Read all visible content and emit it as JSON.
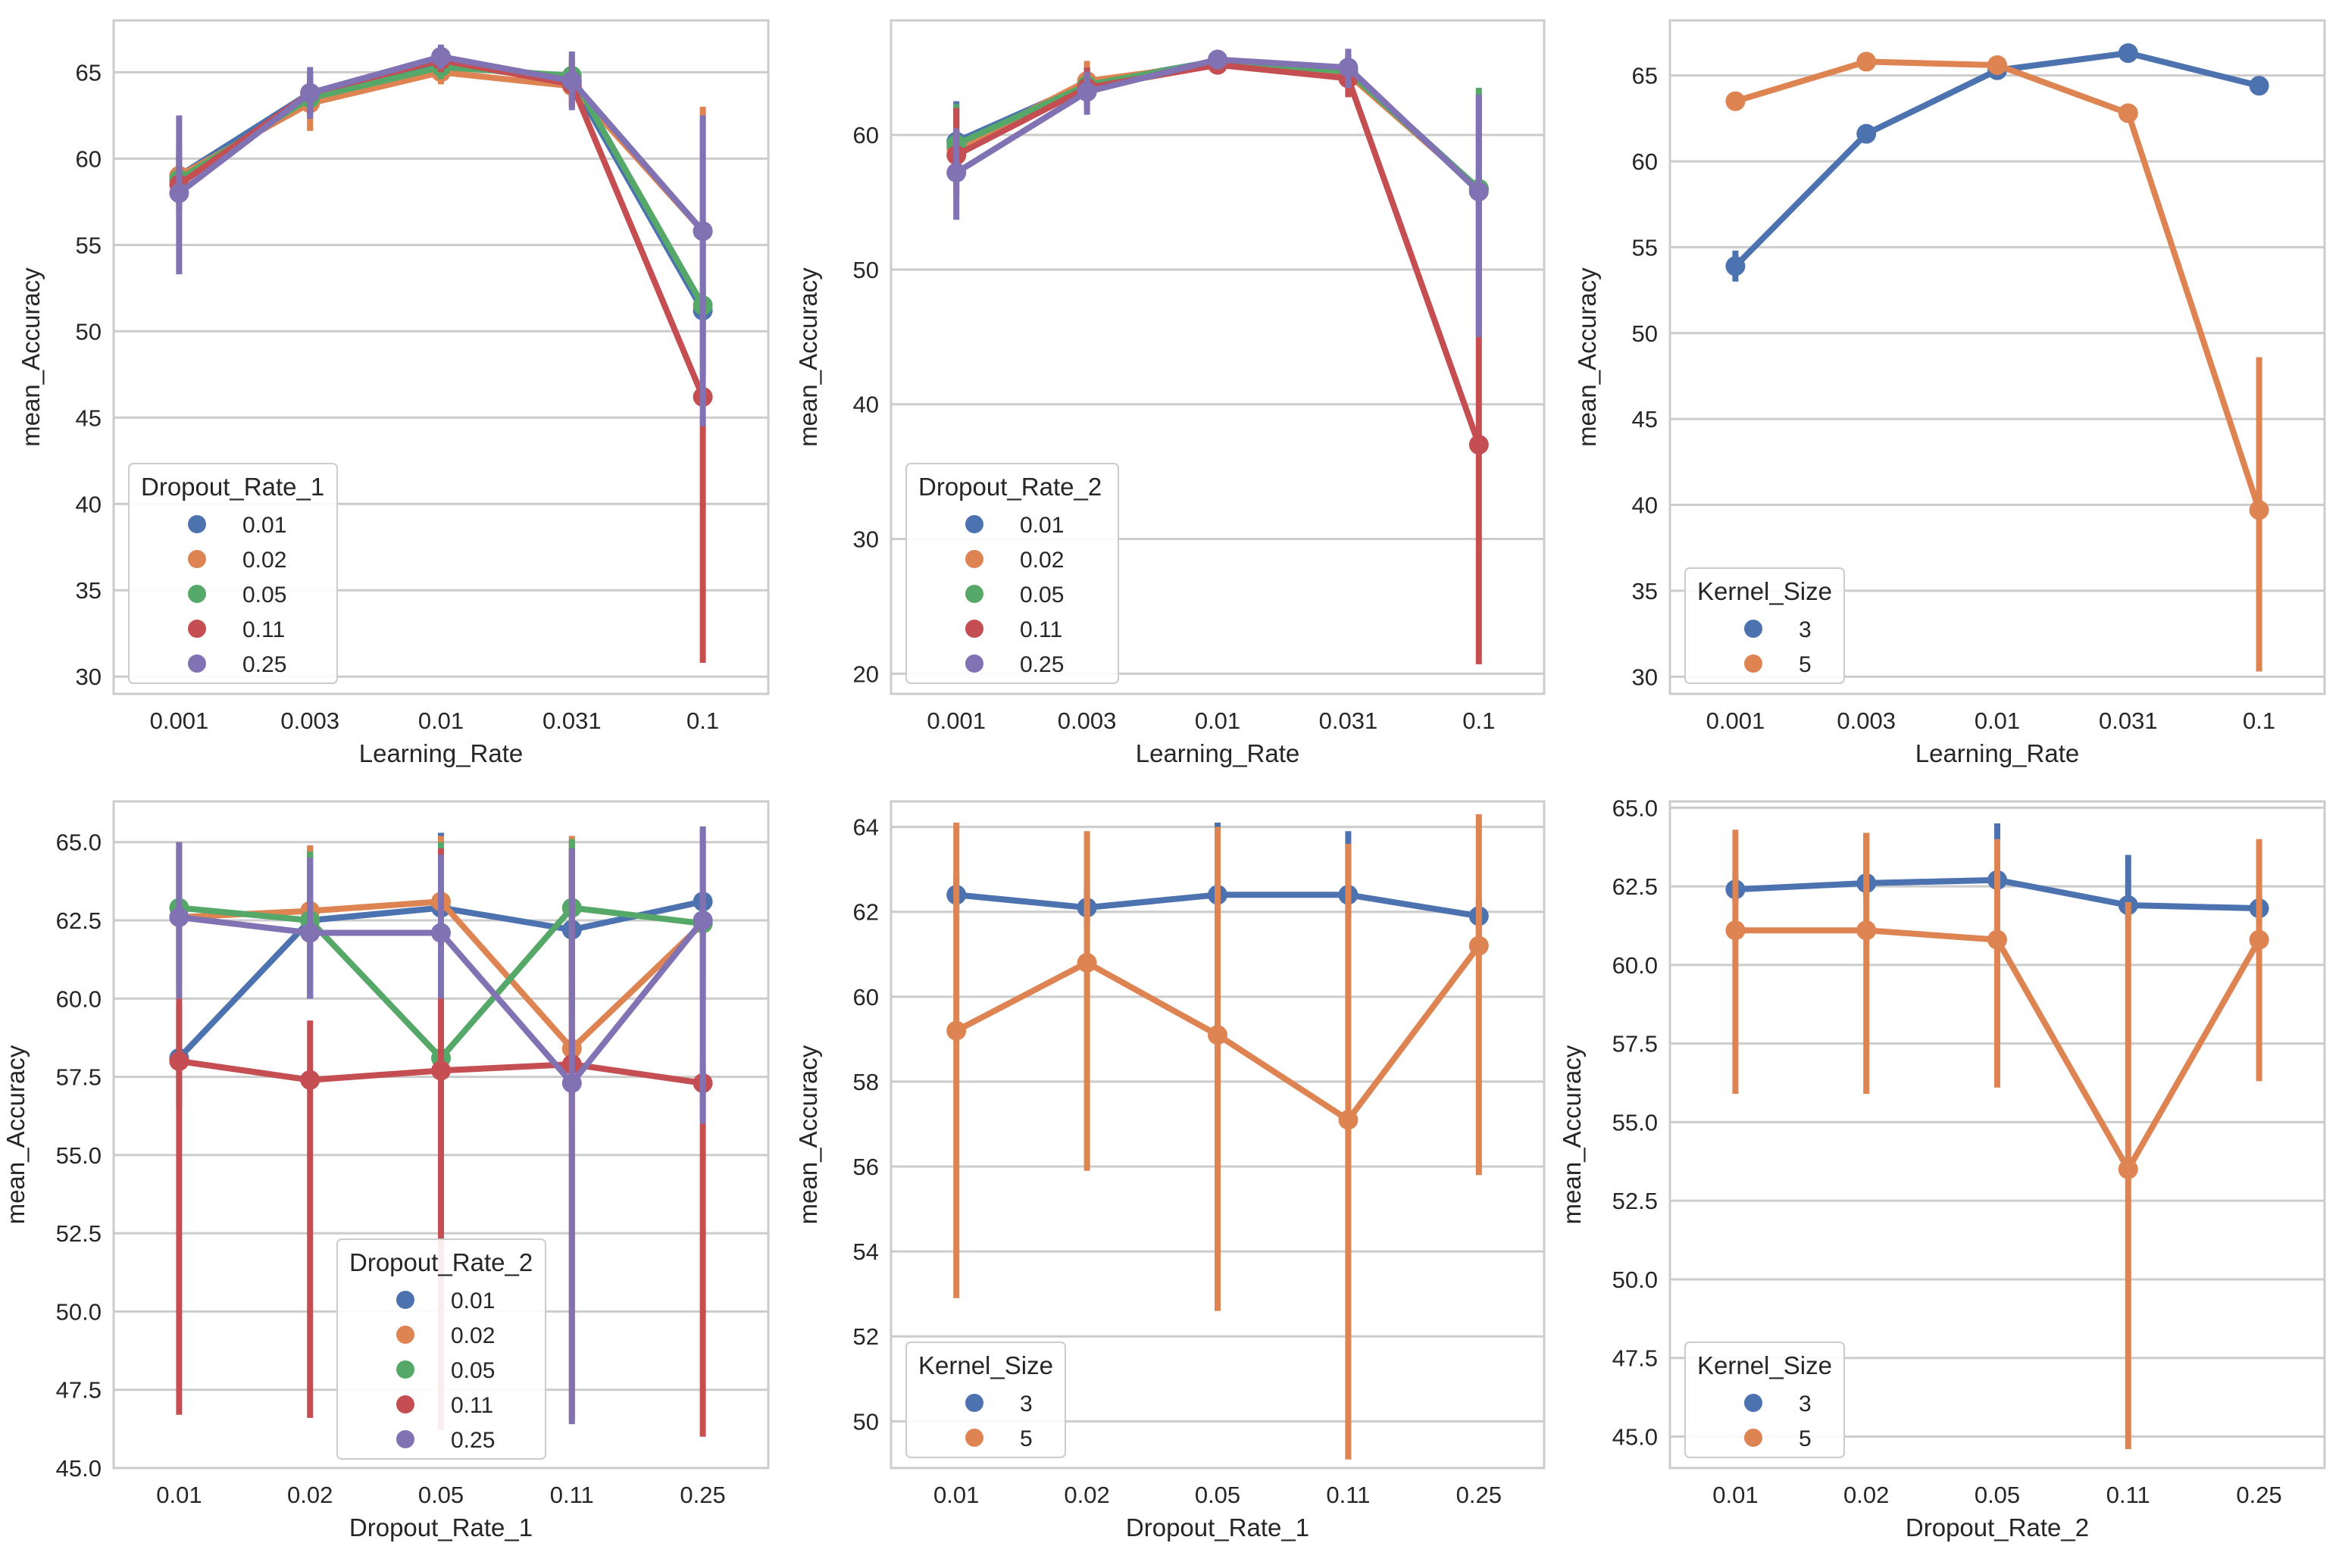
{
  "figure": {
    "background": "#ffffff"
  },
  "chart_data": [
    {
      "type": "line",
      "xlabel": "Learning_Rate",
      "ylabel": "mean_Accuracy",
      "categories": [
        "0.001",
        "0.003",
        "0.01",
        "0.031",
        "0.1"
      ],
      "ylim": [
        29,
        68
      ],
      "yticks": [
        30,
        35,
        40,
        45,
        50,
        55,
        60,
        65
      ],
      "ytick_labels": [
        "30",
        "35",
        "40",
        "45",
        "50",
        "55",
        "60",
        "65"
      ],
      "legend": {
        "title": "Dropout_Rate_1",
        "position": "lower-left"
      },
      "series": [
        {
          "name": "0.01",
          "color": "#4c72b0",
          "values": [
            59.0,
            63.8,
            65.5,
            64.5,
            51.2
          ],
          "ci": [
            [
              57.2,
              60.8
            ],
            [
              62.6,
              65.0
            ],
            [
              64.8,
              66.2
            ],
            [
              63.4,
              65.6
            ],
            [
              47.5,
              55.0
            ]
          ]
        },
        {
          "name": "0.02",
          "color": "#dd8452",
          "values": [
            59.0,
            63.2,
            65.0,
            64.2,
            55.8
          ],
          "ci": [
            [
              57.5,
              60.5
            ],
            [
              61.6,
              64.6
            ],
            [
              64.3,
              65.7
            ],
            [
              63.0,
              65.4
            ],
            [
              48.5,
              63.0
            ]
          ]
        },
        {
          "name": "0.05",
          "color": "#55a868",
          "values": [
            58.8,
            63.5,
            65.3,
            64.8,
            51.5
          ],
          "ci": [
            [
              57.3,
              60.3
            ],
            [
              62.3,
              64.7
            ],
            [
              64.6,
              66.0
            ],
            [
              63.6,
              66.0
            ],
            [
              47.5,
              55.5
            ]
          ]
        },
        {
          "name": "0.11",
          "color": "#c44e52",
          "values": [
            58.5,
            63.8,
            65.7,
            64.3,
            46.2
          ],
          "ci": [
            [
              56.9,
              60.1
            ],
            [
              62.6,
              65.0
            ],
            [
              65.0,
              66.4
            ],
            [
              63.0,
              65.6
            ],
            [
              30.8,
              45.0
            ]
          ]
        },
        {
          "name": "0.25",
          "color": "#8172b3",
          "values": [
            58.0,
            63.8,
            65.9,
            64.5,
            55.8
          ],
          "ci": [
            [
              53.3,
              62.5
            ],
            [
              62.3,
              65.3
            ],
            [
              65.2,
              66.6
            ],
            [
              62.8,
              66.2
            ],
            [
              44.5,
              62.5
            ]
          ]
        }
      ]
    },
    {
      "type": "line",
      "xlabel": "Learning_Rate",
      "ylabel": "mean_Accuracy",
      "categories": [
        "0.001",
        "0.003",
        "0.01",
        "0.031",
        "0.1"
      ],
      "ylim": [
        18.5,
        68.5
      ],
      "yticks": [
        20,
        30,
        40,
        50,
        60
      ],
      "ytick_labels": [
        "20",
        "30",
        "40",
        "50",
        "60"
      ],
      "legend": {
        "title": "Dropout_Rate_2",
        "position": "lower-left"
      },
      "series": [
        {
          "name": "0.01",
          "color": "#4c72b0",
          "values": [
            59.5,
            63.8,
            65.5,
            64.8,
            56.0
          ],
          "ci": [
            [
              56.5,
              62.5
            ],
            [
              62.5,
              65.0
            ],
            [
              65.0,
              66.0
            ],
            [
              63.5,
              66.0
            ],
            [
              45.0,
              63.0
            ]
          ]
        },
        {
          "name": "0.02",
          "color": "#dd8452",
          "values": [
            59.0,
            64.0,
            65.3,
            64.5,
            56.0
          ],
          "ci": [
            [
              56.5,
              61.5
            ],
            [
              62.5,
              65.5
            ],
            [
              64.8,
              65.8
            ],
            [
              63.2,
              65.8
            ],
            [
              45.0,
              63.0
            ]
          ]
        },
        {
          "name": "0.05",
          "color": "#55a868",
          "values": [
            59.3,
            63.7,
            65.5,
            64.7,
            56.0
          ],
          "ci": [
            [
              56.8,
              62.3
            ],
            [
              62.3,
              65.0
            ],
            [
              65.0,
              66.0
            ],
            [
              63.4,
              66.0
            ],
            [
              45.0,
              63.5
            ]
          ]
        },
        {
          "name": "0.11",
          "color": "#c44e52",
          "values": [
            58.5,
            63.5,
            65.2,
            64.2,
            37.0
          ],
          "ci": [
            [
              55.5,
              62.0
            ],
            [
              62.0,
              65.0
            ],
            [
              64.6,
              65.8
            ],
            [
              62.8,
              65.5
            ],
            [
              20.7,
              45.0
            ]
          ]
        },
        {
          "name": "0.25",
          "color": "#8172b3",
          "values": [
            57.2,
            63.2,
            65.6,
            65.0,
            55.8
          ],
          "ci": [
            [
              53.7,
              60.5
            ],
            [
              61.5,
              64.7
            ],
            [
              65.0,
              66.2
            ],
            [
              63.5,
              66.4
            ],
            [
              45.0,
              63.0
            ]
          ]
        }
      ]
    },
    {
      "type": "line",
      "xlabel": "Learning_Rate",
      "ylabel": "mean_Accuracy",
      "categories": [
        "0.001",
        "0.003",
        "0.01",
        "0.031",
        "0.1"
      ],
      "ylim": [
        29,
        68.2
      ],
      "yticks": [
        30,
        35,
        40,
        45,
        50,
        55,
        60,
        65
      ],
      "ytick_labels": [
        "30",
        "35",
        "40",
        "45",
        "50",
        "55",
        "60",
        "65"
      ],
      "legend": {
        "title": "Kernel_Size",
        "position": "lower-left"
      },
      "series": [
        {
          "name": "3",
          "color": "#4c72b0",
          "values": [
            53.9,
            61.6,
            65.3,
            66.3,
            64.4
          ],
          "ci": [
            [
              53.0,
              54.8
            ],
            [
              61.1,
              62.1
            ],
            [
              64.8,
              65.8
            ],
            [
              65.9,
              66.7
            ],
            [
              63.9,
              64.9
            ]
          ]
        },
        {
          "name": "5",
          "color": "#dd8452",
          "values": [
            63.5,
            65.8,
            65.6,
            62.8,
            39.7
          ],
          "ci": [
            [
              63.0,
              64.0
            ],
            [
              65.3,
              66.3
            ],
            [
              65.1,
              66.1
            ],
            [
              62.3,
              63.3
            ],
            [
              30.3,
              48.6
            ]
          ]
        }
      ]
    },
    {
      "type": "line",
      "xlabel": "Dropout_Rate_1",
      "ylabel": "mean_Accuracy",
      "categories": [
        "0.01",
        "0.02",
        "0.05",
        "0.11",
        "0.25"
      ],
      "ylim": [
        45,
        66.3
      ],
      "yticks": [
        45,
        47.5,
        50,
        52.5,
        55,
        57.5,
        60,
        62.5,
        65
      ],
      "ytick_labels": [
        "45.0",
        "47.5",
        "50.0",
        "52.5",
        "55.0",
        "57.5",
        "60.0",
        "62.5",
        "65.0"
      ],
      "legend": {
        "title": "Dropout_Rate_2",
        "position": "lower-center"
      },
      "series": [
        {
          "name": "0.01",
          "color": "#4c72b0",
          "values": [
            58.1,
            62.5,
            62.9,
            62.2,
            63.1
          ],
          "ci": [
            [
              56.5,
              59.8
            ],
            [
              60.0,
              64.8
            ],
            [
              60.8,
              65.3
            ],
            [
              59.5,
              65.0
            ],
            [
              60.8,
              65.4
            ]
          ]
        },
        {
          "name": "0.02",
          "color": "#dd8452",
          "values": [
            62.6,
            62.8,
            63.1,
            58.4,
            62.4
          ],
          "ci": [
            [
              60.0,
              64.8
            ],
            [
              60.5,
              64.9
            ],
            [
              60.8,
              65.2
            ],
            [
              56.0,
              65.2
            ],
            [
              60.0,
              64.9
            ]
          ]
        },
        {
          "name": "0.05",
          "color": "#55a868",
          "values": [
            62.9,
            62.5,
            58.1,
            62.9,
            62.4
          ],
          "ci": [
            [
              60.5,
              65.0
            ],
            [
              60.0,
              64.7
            ],
            [
              56.0,
              65.0
            ],
            [
              60.5,
              65.1
            ],
            [
              60.0,
              64.9
            ]
          ]
        },
        {
          "name": "0.11",
          "color": "#c44e52",
          "values": [
            58.0,
            57.4,
            57.7,
            57.9,
            57.3
          ],
          "ci": [
            [
              46.7,
              60.0
            ],
            [
              46.6,
              59.3
            ],
            [
              46.2,
              64.8
            ],
            [
              46.5,
              64.8
            ],
            [
              46.0,
              58.0
            ]
          ]
        },
        {
          "name": "0.25",
          "color": "#8172b3",
          "values": [
            62.6,
            62.1,
            62.1,
            57.3,
            62.5
          ],
          "ci": [
            [
              60.0,
              65.0
            ],
            [
              60.0,
              64.5
            ],
            [
              60.0,
              64.6
            ],
            [
              46.4,
              64.8
            ],
            [
              56.0,
              65.5
            ]
          ]
        }
      ]
    },
    {
      "type": "line",
      "xlabel": "Dropout_Rate_1",
      "ylabel": "mean_Accuracy",
      "categories": [
        "0.01",
        "0.02",
        "0.05",
        "0.11",
        "0.25"
      ],
      "ylim": [
        48.9,
        64.6
      ],
      "yticks": [
        50,
        52,
        54,
        56,
        58,
        60,
        62,
        64
      ],
      "ytick_labels": [
        "50",
        "52",
        "54",
        "56",
        "58",
        "60",
        "62",
        "64"
      ],
      "legend": {
        "title": "Kernel_Size",
        "position": "lower-left"
      },
      "series": [
        {
          "name": "3",
          "color": "#4c72b0",
          "values": [
            62.4,
            62.1,
            62.4,
            62.4,
            61.9
          ],
          "ci": [
            [
              62.0,
              62.9
            ],
            [
              61.7,
              62.6
            ],
            [
              61.9,
              64.1
            ],
            [
              61.9,
              63.9
            ],
            [
              61.4,
              62.3
            ]
          ]
        },
        {
          "name": "5",
          "color": "#dd8452",
          "values": [
            59.2,
            60.8,
            59.1,
            57.1,
            61.2
          ],
          "ci": [
            [
              52.9,
              64.1
            ],
            [
              55.9,
              63.9
            ],
            [
              52.6,
              64.0
            ],
            [
              49.1,
              63.6
            ],
            [
              55.8,
              64.3
            ]
          ]
        }
      ]
    },
    {
      "type": "line",
      "xlabel": "Dropout_Rate_2",
      "ylabel": "mean_Accuracy",
      "categories": [
        "0.01",
        "0.02",
        "0.05",
        "0.11",
        "0.25"
      ],
      "ylim": [
        44,
        65.2
      ],
      "yticks": [
        45,
        47.5,
        50,
        52.5,
        55,
        57.5,
        60,
        62.5,
        65
      ],
      "ytick_labels": [
        "45.0",
        "47.5",
        "50.0",
        "52.5",
        "55.0",
        "57.5",
        "60.0",
        "62.5",
        "65.0"
      ],
      "legend": {
        "title": "Kernel_Size",
        "position": "lower-left"
      },
      "series": [
        {
          "name": "3",
          "color": "#4c72b0",
          "values": [
            62.4,
            62.6,
            62.7,
            61.9,
            61.8
          ],
          "ci": [
            [
              62.0,
              62.9
            ],
            [
              62.1,
              64.2
            ],
            [
              62.2,
              64.5
            ],
            [
              61.4,
              63.5
            ],
            [
              61.3,
              62.3
            ]
          ]
        },
        {
          "name": "5",
          "color": "#dd8452",
          "values": [
            61.1,
            61.1,
            60.8,
            53.5,
            60.8
          ],
          "ci": [
            [
              55.9,
              64.3
            ],
            [
              55.9,
              64.2
            ],
            [
              56.1,
              64.0
            ],
            [
              44.6,
              62.0
            ],
            [
              56.3,
              64.0
            ]
          ]
        }
      ]
    }
  ]
}
